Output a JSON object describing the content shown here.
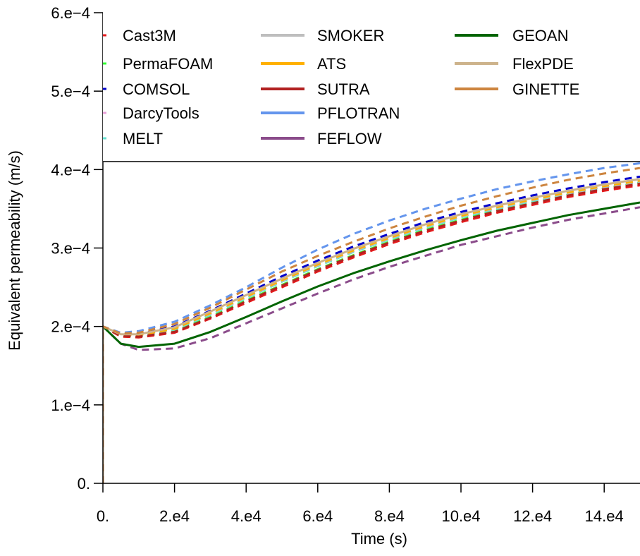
{
  "chart_data": {
    "type": "line",
    "title": "",
    "xlabel": "Time (s)",
    "ylabel": "Equivalent permeability (m/s)",
    "xlim": [
      0,
      150000
    ],
    "ylim": [
      0,
      0.0006
    ],
    "x_ticks": [
      0,
      20000,
      40000,
      60000,
      80000,
      100000,
      120000,
      140000
    ],
    "x_tick_labels": [
      "0.",
      "2.e4",
      "4.e4",
      "6.e4",
      "8.e4",
      "10.e4",
      "12.e4",
      "14.e4"
    ],
    "y_ticks": [
      0,
      0.0001,
      0.0002,
      0.0003,
      0.0004,
      0.0005,
      0.0006
    ],
    "y_tick_labels": [
      "0.",
      "1.e−4",
      "2.e−4",
      "3.e−4",
      "4.e−4",
      "5.e−4",
      "6.e−4"
    ],
    "grid": false,
    "legend_placement": "top",
    "series": [
      {
        "name": "Cast3M",
        "color": "#e41a1c",
        "style": "dashed",
        "x": [
          0,
          5000,
          10000,
          20000,
          30000,
          40000,
          50000,
          60000,
          70000,
          80000,
          90000,
          100000,
          110000,
          120000,
          130000,
          140000,
          150000
        ],
        "y": [
          0.0002,
          0.000187,
          0.000186,
          0.000192,
          0.00021,
          0.00023,
          0.00025,
          0.00027,
          0.000288,
          0.000305,
          0.00032,
          0.000333,
          0.000345,
          0.000355,
          0.000365,
          0.000373,
          0.00038
        ]
      },
      {
        "name": "PermaFOAM",
        "color": "#33ff33",
        "style": "dashed",
        "x": [
          0,
          5000,
          10000,
          20000,
          30000,
          40000,
          50000,
          60000,
          70000,
          80000,
          90000,
          100000,
          110000,
          120000,
          130000,
          140000,
          150000
        ],
        "y": [
          0.0002,
          0.000188,
          0.000187,
          0.000194,
          0.000212,
          0.000233,
          0.000253,
          0.000273,
          0.000291,
          0.000308,
          0.000323,
          0.000336,
          0.000348,
          0.000358,
          0.000368,
          0.000376,
          0.000383
        ]
      },
      {
        "name": "COMSOL",
        "color": "#0000cc",
        "style": "dashed",
        "x": [
          0,
          5000,
          10000,
          20000,
          30000,
          40000,
          50000,
          60000,
          70000,
          80000,
          90000,
          100000,
          110000,
          120000,
          130000,
          140000,
          150000
        ],
        "y": [
          0.0002,
          0.00019,
          0.00019,
          0.0002,
          0.00022,
          0.000242,
          0.000264,
          0.000284,
          0.000302,
          0.000318,
          0.000333,
          0.000346,
          0.000357,
          0.000367,
          0.000376,
          0.000384,
          0.000391
        ]
      },
      {
        "name": "DarcyTools",
        "color": "#e8a0d8",
        "style": "dashed",
        "x": [
          0,
          5000,
          10000,
          20000,
          30000,
          40000,
          50000,
          60000,
          70000,
          80000,
          90000,
          100000,
          110000,
          120000,
          130000,
          140000,
          150000
        ],
        "y": [
          0.0002,
          0.00019,
          0.000189,
          0.000198,
          0.000218,
          0.000239,
          0.00026,
          0.00028,
          0.000298,
          0.000314,
          0.000329,
          0.000342,
          0.000353,
          0.000363,
          0.000372,
          0.00038,
          0.000387
        ]
      },
      {
        "name": "MELT",
        "color": "#66e0d0",
        "style": "dashed",
        "x": [
          0,
          5000,
          10000,
          20000,
          30000,
          40000,
          50000,
          60000,
          70000,
          80000,
          90000,
          100000,
          110000,
          120000,
          130000,
          140000,
          150000
        ],
        "y": [
          0.0002,
          0.000189,
          0.000188,
          0.000196,
          0.000215,
          0.000236,
          0.000257,
          0.000277,
          0.000295,
          0.000311,
          0.000326,
          0.000339,
          0.00035,
          0.00036,
          0.000369,
          0.000377,
          0.000384
        ]
      },
      {
        "name": "SMOKER",
        "color": "#bebebe",
        "style": "dashed",
        "x": [
          0,
          5000,
          10000,
          20000,
          30000,
          40000,
          50000,
          60000,
          70000,
          80000,
          90000,
          100000,
          110000,
          120000,
          130000,
          140000,
          150000
        ],
        "y": [
          0.0002,
          0.00019,
          0.000189,
          0.000197,
          0.000216,
          0.000237,
          0.000258,
          0.000278,
          0.000296,
          0.000312,
          0.000327,
          0.00034,
          0.000351,
          0.000361,
          0.00037,
          0.000378,
          0.000385
        ]
      },
      {
        "name": "ATS",
        "color": "#ffb000",
        "style": "dashed",
        "x": [
          0,
          5000,
          10000,
          20000,
          30000,
          40000,
          50000,
          60000,
          70000,
          80000,
          90000,
          100000,
          110000,
          120000,
          130000,
          140000,
          150000
        ],
        "y": [
          0.0002,
          0.00019,
          0.000189,
          0.000197,
          0.000217,
          0.000238,
          0.000259,
          0.000279,
          0.000297,
          0.000313,
          0.000328,
          0.000341,
          0.000352,
          0.000362,
          0.000371,
          0.000379,
          0.000386
        ]
      },
      {
        "name": "SUTRA",
        "color": "#b22222",
        "style": "dashed",
        "x": [
          0,
          5000,
          10000,
          20000,
          30000,
          40000,
          50000,
          60000,
          70000,
          80000,
          90000,
          100000,
          110000,
          120000,
          130000,
          140000,
          150000
        ],
        "y": [
          0.0002,
          0.000188,
          0.000187,
          0.000193,
          0.000211,
          0.000232,
          0.000252,
          0.000272,
          0.00029,
          0.000307,
          0.000322,
          0.000335,
          0.000347,
          0.000357,
          0.000367,
          0.000375,
          0.000382
        ]
      },
      {
        "name": "PFLOTRAN",
        "color": "#6495ed",
        "style": "dashed",
        "x": [
          0,
          5000,
          10000,
          20000,
          30000,
          40000,
          50000,
          60000,
          70000,
          80000,
          90000,
          100000,
          110000,
          120000,
          130000,
          140000,
          150000
        ],
        "y": [
          0.0002,
          0.000192,
          0.000194,
          0.000206,
          0.000227,
          0.00025,
          0.000275,
          0.000298,
          0.000318,
          0.000335,
          0.00035,
          0.000363,
          0.000375,
          0.000385,
          0.000394,
          0.000402,
          0.000408
        ]
      },
      {
        "name": "FEFLOW",
        "color": "#8b4c8b",
        "style": "dashed",
        "x": [
          0,
          5000,
          10000,
          20000,
          30000,
          40000,
          50000,
          60000,
          70000,
          80000,
          90000,
          100000,
          110000,
          120000,
          130000,
          140000,
          150000
        ],
        "y": [
          0.0002,
          0.000178,
          0.00017,
          0.000172,
          0.000185,
          0.000204,
          0.000223,
          0.000242,
          0.00026,
          0.000276,
          0.00029,
          0.000304,
          0.000315,
          0.000326,
          0.000336,
          0.000344,
          0.000352
        ]
      },
      {
        "name": "GEOAN",
        "color": "#006400",
        "style": "solid",
        "x": [
          0,
          5000,
          10000,
          20000,
          30000,
          40000,
          50000,
          60000,
          70000,
          80000,
          90000,
          100000,
          110000,
          120000,
          130000,
          140000,
          150000
        ],
        "y": [
          0.0002,
          0.000178,
          0.000174,
          0.000178,
          0.000193,
          0.000212,
          0.000232,
          0.000251,
          0.000268,
          0.000283,
          0.000297,
          0.00031,
          0.000322,
          0.000332,
          0.000342,
          0.00035,
          0.000358
        ]
      },
      {
        "name": "FlexPDE",
        "color": "#cdb38b",
        "style": "solid",
        "x": [
          0,
          5000,
          10000,
          20000,
          30000,
          40000,
          50000,
          60000,
          70000,
          80000,
          90000,
          100000,
          110000,
          120000,
          130000,
          140000,
          150000
        ],
        "y": [
          0.0002,
          0.00019,
          0.00019,
          0.000199,
          0.000219,
          0.00024,
          0.000261,
          0.000281,
          0.000299,
          0.000315,
          0.00033,
          0.000343,
          0.000354,
          0.000364,
          0.000373,
          0.000381,
          0.000388
        ]
      },
      {
        "name": "GINETTE",
        "color": "#cd853f",
        "style": "dashed",
        "x": [
          0,
          5000,
          10000,
          20000,
          30000,
          40000,
          50000,
          60000,
          70000,
          80000,
          90000,
          100000,
          110000,
          120000,
          130000,
          140000,
          150000
        ],
        "y": [
          0.0002,
          0.000191,
          0.000192,
          0.000203,
          0.000224,
          0.000247,
          0.00027,
          0.00029,
          0.000308,
          0.000325,
          0.00034,
          0.000354,
          0.000366,
          0.000377,
          0.000387,
          0.000395,
          0.000402
        ]
      }
    ]
  }
}
